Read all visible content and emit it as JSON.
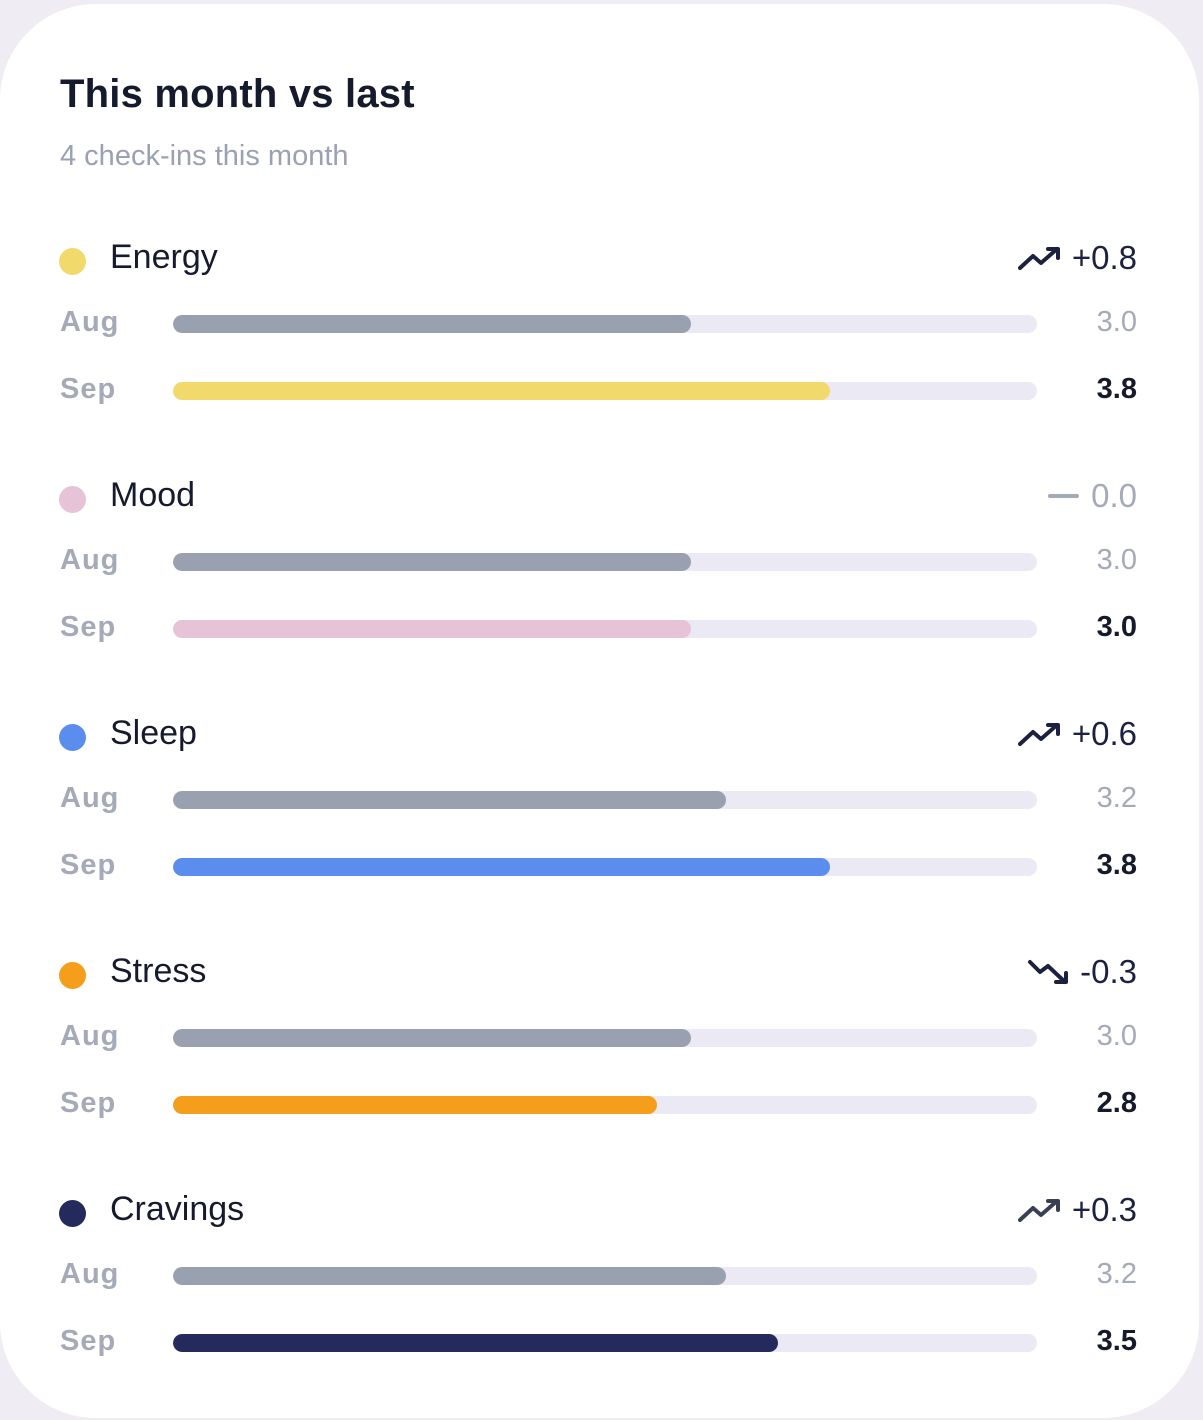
{
  "card": {
    "title": "This month vs last",
    "subtitle": "4 check-ins this month"
  },
  "scale_max": 5,
  "metrics": [
    {
      "name": "Energy",
      "color": "#f2d96b",
      "delta": "+0.8",
      "trend": "up",
      "trend_icon": "trend-up-icon",
      "rows": [
        {
          "month": "Aug",
          "value": "3.0",
          "score": 3.0
        },
        {
          "month": "Sep",
          "value": "3.8",
          "score": 3.8
        }
      ]
    },
    {
      "name": "Mood",
      "color": "#e6c3d6",
      "delta": "0.0",
      "trend": "flat",
      "trend_icon": "trend-flat-icon",
      "rows": [
        {
          "month": "Aug",
          "value": "3.0",
          "score": 3.0
        },
        {
          "month": "Sep",
          "value": "3.0",
          "score": 3.0
        }
      ]
    },
    {
      "name": "Sleep",
      "color": "#5b8def",
      "delta": "+0.6",
      "trend": "up",
      "trend_icon": "trend-up-icon",
      "rows": [
        {
          "month": "Aug",
          "value": "3.2",
          "score": 3.2
        },
        {
          "month": "Sep",
          "value": "3.8",
          "score": 3.8
        }
      ]
    },
    {
      "name": "Stress",
      "color": "#f59e1b",
      "delta": "-0.3",
      "trend": "down",
      "trend_icon": "trend-down-icon",
      "rows": [
        {
          "month": "Aug",
          "value": "3.0",
          "score": 3.0
        },
        {
          "month": "Sep",
          "value": "2.8",
          "score": 2.8
        }
      ]
    },
    {
      "name": "Cravings",
      "color": "#252a5c",
      "delta": "+0.3",
      "trend": "up",
      "trend_icon": "trend-up-icon",
      "rows": [
        {
          "month": "Aug",
          "value": "3.2",
          "score": 3.2
        },
        {
          "month": "Sep",
          "value": "3.5",
          "score": 3.5
        }
      ]
    }
  ],
  "colors": {
    "previous_bar": "#99a1b0",
    "track": "#ebe9f3",
    "trend_up_text": "#1c2140",
    "trend_flat_text": "#a4aab8",
    "trend_down_text": "#1c2140",
    "cravings_trend_icon": "#394052"
  }
}
